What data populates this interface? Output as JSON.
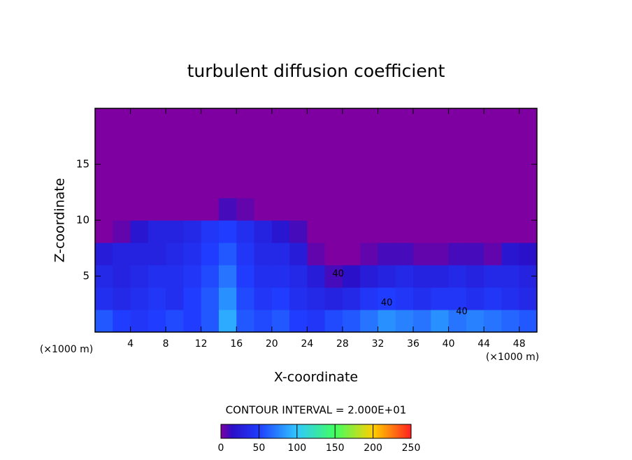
{
  "chart_data": {
    "type": "heatmap",
    "title": "turbulent diffusion coefficient",
    "xlabel": "X-coordinate",
    "ylabel": "Z-coordinate",
    "unit": "(×1000 m)",
    "xlim": [
      0,
      50
    ],
    "ylim": [
      0,
      20
    ],
    "xticks": [
      4,
      8,
      12,
      16,
      20,
      24,
      28,
      32,
      36,
      40,
      44,
      48
    ],
    "yticks": [
      5,
      10,
      15
    ],
    "xbins": [
      0,
      2,
      4,
      6,
      8,
      10,
      12,
      14,
      16,
      18,
      20,
      22,
      24,
      26,
      28,
      30,
      32,
      34,
      36,
      38,
      40,
      42,
      44,
      46,
      48,
      50
    ],
    "zbins": [
      0,
      2,
      4,
      6,
      8,
      10,
      12,
      14,
      16,
      18,
      20
    ],
    "values": [
      [
        60,
        50,
        45,
        50,
        55,
        50,
        60,
        90,
        60,
        55,
        60,
        50,
        45,
        55,
        60,
        70,
        80,
        75,
        70,
        80,
        70,
        75,
        70,
        65,
        60
      ],
      [
        40,
        35,
        40,
        45,
        40,
        50,
        60,
        80,
        55,
        45,
        50,
        40,
        35,
        30,
        35,
        45,
        50,
        45,
        40,
        45,
        45,
        40,
        45,
        40,
        35
      ],
      [
        35,
        30,
        35,
        40,
        40,
        45,
        55,
        70,
        50,
        40,
        40,
        35,
        25,
        10,
        15,
        25,
        30,
        35,
        30,
        30,
        35,
        30,
        35,
        35,
        30
      ],
      [
        25,
        30,
        30,
        30,
        35,
        40,
        50,
        60,
        45,
        35,
        35,
        25,
        5,
        0,
        0,
        5,
        10,
        10,
        5,
        5,
        10,
        10,
        5,
        20,
        15
      ],
      [
        0,
        5,
        20,
        30,
        30,
        35,
        45,
        50,
        40,
        30,
        20,
        10,
        0,
        0,
        0,
        0,
        0,
        0,
        0,
        0,
        0,
        0,
        0,
        0,
        0
      ],
      [
        0,
        0,
        0,
        0,
        0,
        0,
        0,
        10,
        5,
        0,
        0,
        0,
        0,
        0,
        0,
        0,
        0,
        0,
        0,
        0,
        0,
        0,
        0,
        0,
        0
      ],
      [
        0,
        0,
        0,
        0,
        0,
        0,
        0,
        0,
        0,
        0,
        0,
        0,
        0,
        0,
        0,
        0,
        0,
        0,
        0,
        0,
        0,
        0,
        0,
        0,
        0
      ],
      [
        0,
        0,
        0,
        0,
        0,
        0,
        0,
        0,
        0,
        0,
        0,
        0,
        0,
        0,
        0,
        0,
        0,
        0,
        0,
        0,
        0,
        0,
        0,
        0,
        0
      ],
      [
        0,
        0,
        0,
        0,
        0,
        0,
        0,
        0,
        0,
        0,
        0,
        0,
        0,
        0,
        0,
        0,
        0,
        0,
        0,
        0,
        0,
        0,
        0,
        0,
        0
      ],
      [
        0,
        0,
        0,
        0,
        0,
        0,
        0,
        0,
        0,
        0,
        0,
        0,
        0,
        0,
        0,
        0,
        0,
        0,
        0,
        0,
        0,
        0,
        0,
        0,
        0
      ]
    ],
    "annotations": [
      {
        "text": "40",
        "x": 27.5,
        "y": 5.2
      },
      {
        "text": "40",
        "x": 33,
        "y": 2.6
      },
      {
        "text": "40",
        "x": 41.5,
        "y": 1.8
      }
    ],
    "contour_interval": "CONTOUR INTERVAL = 2.000E+01",
    "clim": [
      0,
      250
    ],
    "cticks": [
      0,
      50,
      100,
      150,
      200,
      250
    ],
    "colormap": [
      {
        "value": 0,
        "color": "#7f00a0"
      },
      {
        "value": 15,
        "color": "#2a10c8"
      },
      {
        "value": 50,
        "color": "#1f3cff"
      },
      {
        "value": 100,
        "color": "#30c8ff"
      },
      {
        "value": 150,
        "color": "#40ff60"
      },
      {
        "value": 200,
        "color": "#ffd000"
      },
      {
        "value": 250,
        "color": "#ff2020"
      }
    ]
  }
}
